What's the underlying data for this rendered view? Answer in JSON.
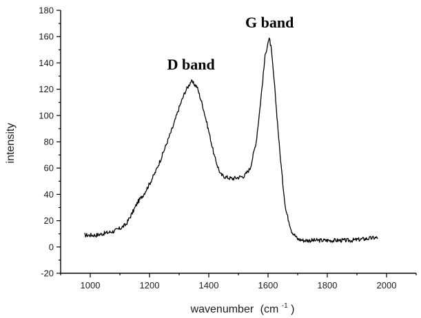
{
  "chart_data": {
    "type": "line",
    "title": "",
    "xlabel": "wavenumber",
    "xlabel_unit": "(cm",
    "xlabel_unit_exp": "-1",
    "xlabel_unit_close": ")",
    "ylabel": "intensity",
    "xlim": [
      900,
      2100
    ],
    "ylim": [
      -20,
      180
    ],
    "x_ticks": [
      1000,
      1200,
      1400,
      1600,
      1800,
      2000
    ],
    "y_ticks": [
      -20,
      0,
      20,
      40,
      60,
      80,
      100,
      120,
      140,
      160,
      180
    ],
    "grid": false,
    "annotations": [
      {
        "text": "D band",
        "x": 1340,
        "y": 135
      },
      {
        "text": "G band",
        "x": 1605,
        "y": 167
      }
    ],
    "series": [
      {
        "x": [
          980,
          1000,
          1020,
          1040,
          1060,
          1080,
          1100,
          1120,
          1140,
          1160,
          1180,
          1200,
          1220,
          1240,
          1260,
          1280,
          1300,
          1320,
          1340,
          1360,
          1380,
          1400,
          1420,
          1440,
          1460,
          1480,
          1500,
          1520,
          1540,
          1560,
          1570,
          1580,
          1590,
          1600,
          1605,
          1610,
          1620,
          1630,
          1640,
          1650,
          1660,
          1680,
          1700,
          1720,
          1760,
          1800,
          1840,
          1880,
          1920,
          1960,
          1970
        ],
        "y": [
          9,
          9,
          9,
          10,
          11,
          12,
          14,
          17,
          25,
          34,
          40,
          48,
          57,
          68,
          80,
          92,
          106,
          118,
          126,
          122,
          107,
          88,
          68,
          55,
          53,
          52,
          53,
          54,
          60,
          80,
          100,
          122,
          145,
          156,
          158,
          152,
          128,
          100,
          72,
          48,
          28,
          12,
          6,
          5,
          5,
          5,
          5,
          5,
          6,
          7,
          7
        ]
      }
    ]
  }
}
